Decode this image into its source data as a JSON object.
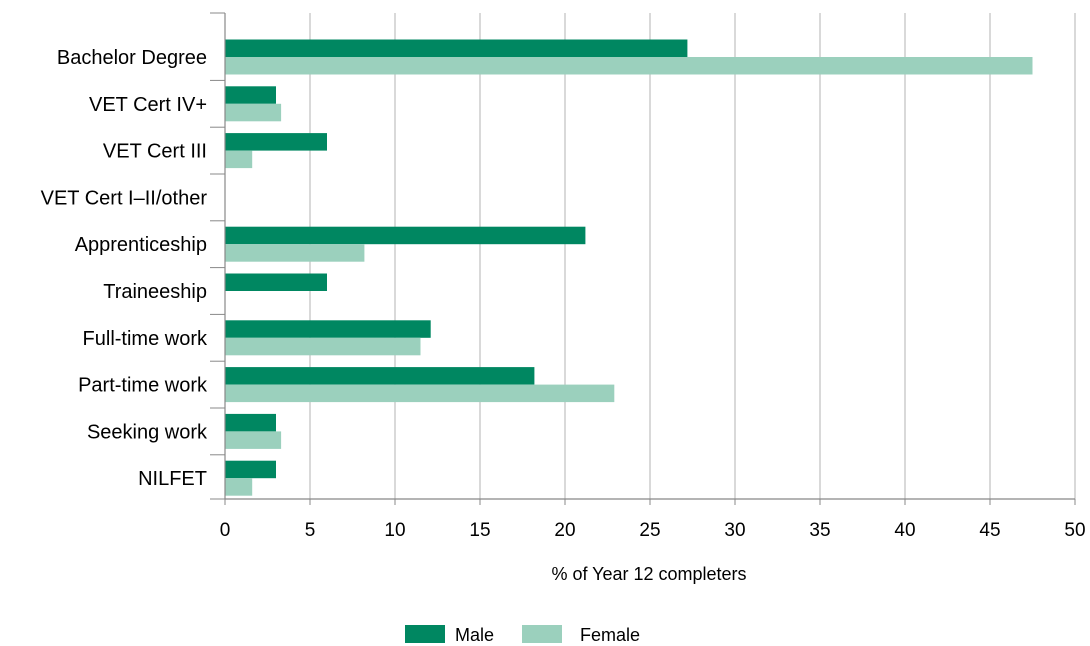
{
  "chart_data": {
    "type": "bar",
    "orientation": "horizontal",
    "categories": [
      "Bachelor Degree",
      "VET Cert IV+",
      "VET Cert III",
      "VET Cert I–II/other",
      "Apprenticeship",
      "Traineeship",
      "Full-time work",
      "Part-time work",
      "Seeking work",
      "NILFET"
    ],
    "series": [
      {
        "name": "Male",
        "color": "#008761",
        "values": [
          27.2,
          3.0,
          6.0,
          0,
          21.2,
          6.0,
          12.1,
          18.2,
          3.0,
          3.0
        ]
      },
      {
        "name": "Female",
        "color": "#9bd0bd",
        "values": [
          47.5,
          3.3,
          1.6,
          0,
          8.2,
          0,
          11.5,
          22.9,
          3.3,
          1.6
        ]
      }
    ],
    "xlabel": "% of Year 12 completers",
    "xlim": [
      0,
      50
    ],
    "xticks": [
      0,
      5,
      10,
      15,
      20,
      25,
      30,
      35,
      40,
      45,
      50
    ],
    "grid": "vertical",
    "legend_position": "bottom"
  }
}
